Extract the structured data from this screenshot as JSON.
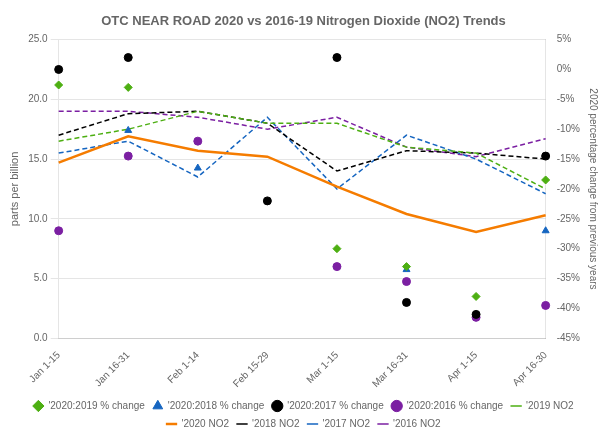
{
  "chart_data": {
    "type": "line",
    "title": "OTC NEAR ROAD 2020 vs 2016-19 Nitrogen Dioxide (NO2) Trends",
    "categories": [
      "Jan 1-15",
      "Jan 16-31",
      "Feb 1-14",
      "Feb 15-29",
      "Mar 1-15",
      "Mar 16-31",
      "Apr 1-15",
      "Apr 16-30"
    ],
    "ylabel": "parts per billion",
    "y2label": "2020 percentage change from previous years",
    "ylim": [
      0,
      25
    ],
    "yticks": [
      {
        "value": 0,
        "label": "0.0"
      },
      {
        "value": 5,
        "label": "5.0"
      },
      {
        "value": 10,
        "label": "10.0"
      },
      {
        "value": 15,
        "label": "15.0"
      },
      {
        "value": 20,
        "label": "20.0"
      },
      {
        "value": 25,
        "label": "25.0"
      }
    ],
    "y2lim": [
      -0.45,
      0.05
    ],
    "y2ticks": [
      {
        "value": 0.05,
        "label": "5%"
      },
      {
        "value": 0.0,
        "label": "0%"
      },
      {
        "value": -0.05,
        "label": "-5%"
      },
      {
        "value": -0.1,
        "label": "-10%"
      },
      {
        "value": -0.15,
        "label": "-15%"
      },
      {
        "value": -0.2,
        "label": "-20%"
      },
      {
        "value": -0.25,
        "label": "-25%"
      },
      {
        "value": -0.3,
        "label": "-30%"
      },
      {
        "value": -0.35,
        "label": "-35%"
      },
      {
        "value": -0.4,
        "label": "-40%"
      },
      {
        "value": -0.45,
        "label": "-45%"
      }
    ],
    "grid": true,
    "legend": "bottom",
    "series": [
      {
        "name": "'2019 NO2",
        "type": "line",
        "color": "#4daf12",
        "line_style": "dashed",
        "values": [
          16.5,
          17.5,
          19.0,
          18.0,
          18.0,
          16.0,
          15.5,
          12.5
        ]
      },
      {
        "name": "'2020 NO2",
        "type": "line",
        "color": "#f57c00",
        "line_style": "solid",
        "values": [
          14.7,
          16.9,
          15.7,
          15.2,
          12.7,
          10.4,
          8.9,
          10.3
        ]
      },
      {
        "name": "'2018 NO2",
        "type": "line",
        "color": "#000000",
        "line_style": "dashed",
        "values": [
          17.0,
          18.8,
          19.0,
          18.0,
          14.0,
          15.7,
          15.5,
          15.0
        ]
      },
      {
        "name": "'2017 NO2",
        "type": "line",
        "color": "#1565c0",
        "line_style": "dashed",
        "values": [
          15.5,
          16.5,
          13.5,
          18.5,
          12.5,
          17.0,
          15.0,
          12.1
        ]
      },
      {
        "name": "'2016 NO2",
        "type": "line",
        "color": "#7b1fa2",
        "line_style": "dashed",
        "values": [
          19.0,
          19.0,
          18.5,
          17.5,
          18.5,
          16.0,
          15.2,
          16.7
        ]
      },
      {
        "name": "'2020:2019 % change",
        "type": "scatter",
        "axis": "y2",
        "color": "#4daf12",
        "marker": "diamond",
        "values": [
          -0.026,
          -0.03,
          null,
          null,
          -0.3,
          -0.33,
          -0.38,
          -0.185
        ]
      },
      {
        "name": "'2020:2018 % change",
        "type": "scatter",
        "axis": "y2",
        "color": "#1565c0",
        "marker": "triangle",
        "values": [
          null,
          -0.102,
          -0.165,
          null,
          null,
          -0.335,
          null,
          -0.27
        ]
      },
      {
        "name": "'2020:2017 % change",
        "type": "scatter",
        "axis": "y2",
        "color": "#000000",
        "marker": "circle",
        "values": [
          0.0,
          0.02,
          null,
          -0.22,
          0.02,
          -0.39,
          -0.41,
          -0.145
        ]
      },
      {
        "name": "'2020:2016 % change",
        "type": "scatter",
        "axis": "y2",
        "color": "#7b1fa2",
        "marker": "circle",
        "values": [
          -0.27,
          -0.145,
          -0.12,
          null,
          -0.33,
          -0.355,
          -0.415,
          -0.395
        ]
      }
    ]
  }
}
